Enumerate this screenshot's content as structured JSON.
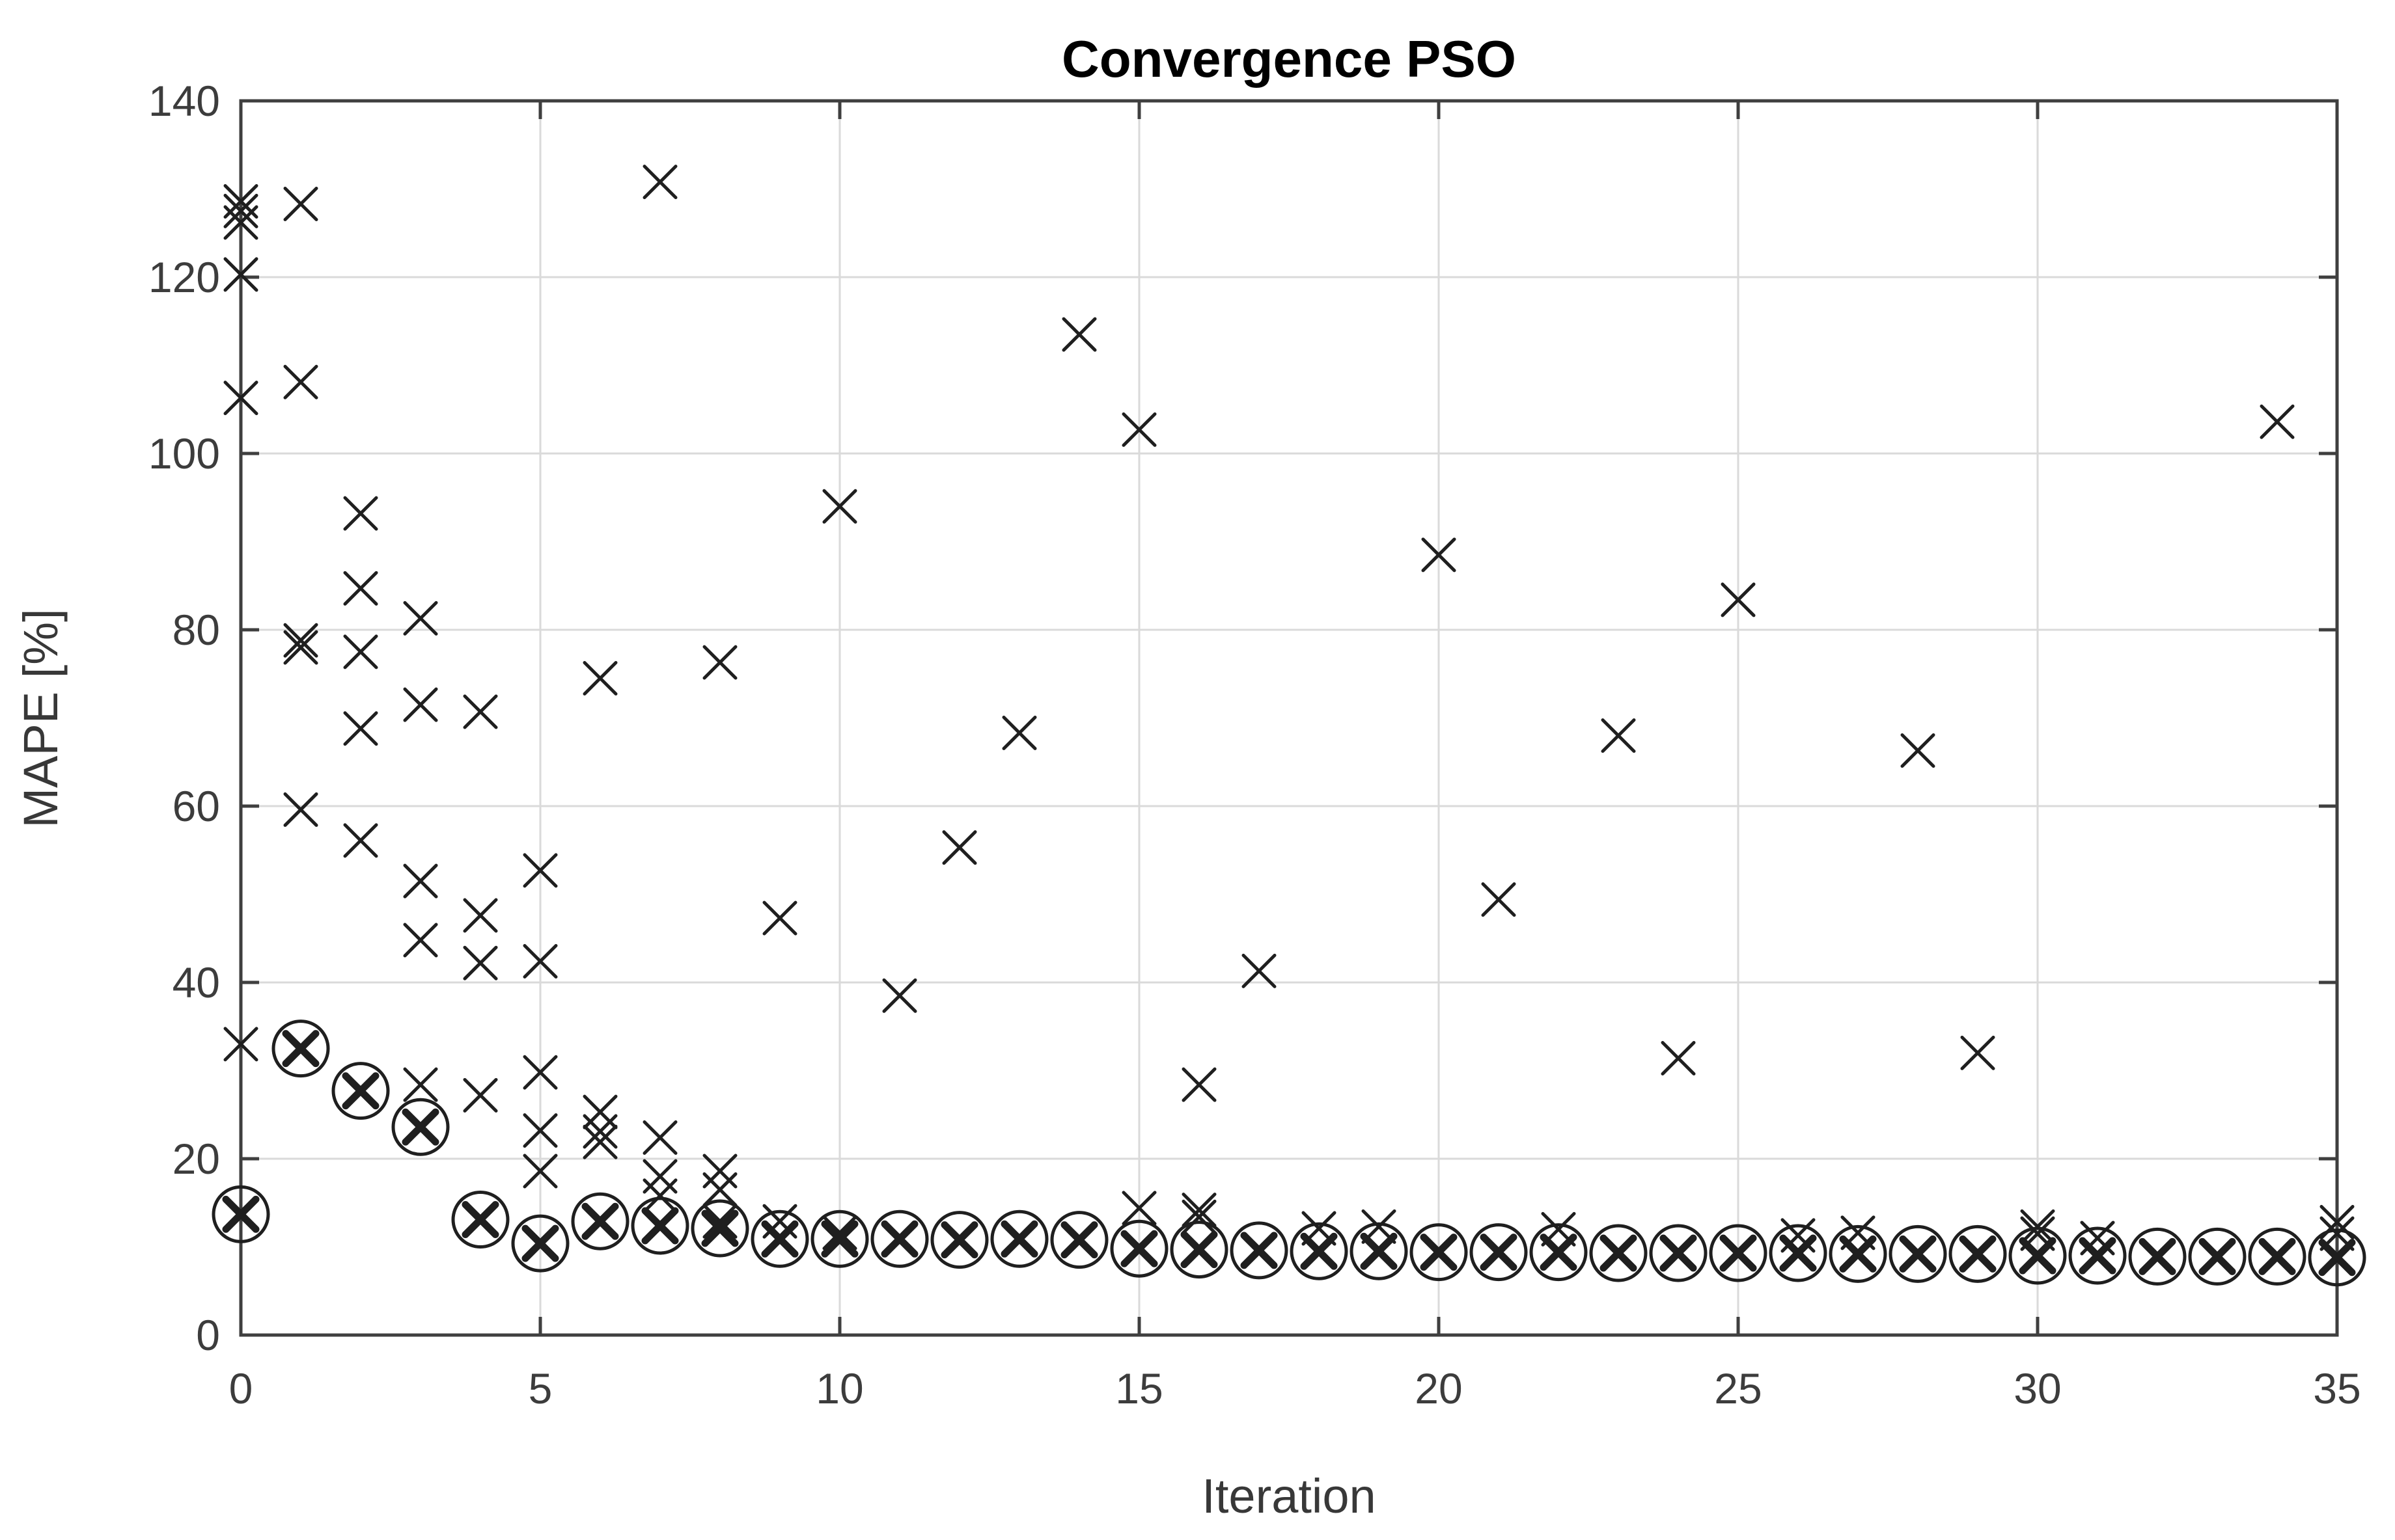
{
  "chart_data": {
    "type": "scatter",
    "title": "Convergence PSO",
    "xlabel": "Iteration",
    "ylabel": "MAPE [%]",
    "xlim": [
      0,
      35
    ],
    "ylim": [
      0,
      140
    ],
    "xticks": [
      0,
      5,
      10,
      15,
      20,
      25,
      30,
      35
    ],
    "yticks": [
      0,
      20,
      40,
      60,
      80,
      100,
      120,
      140
    ],
    "grid": true,
    "legend": "none",
    "series": [
      {
        "name": "particle-mape",
        "marker": "x",
        "points": [
          [
            0,
            128.6
          ],
          [
            0,
            127.5
          ],
          [
            0,
            126.2
          ],
          [
            0,
            120.3
          ],
          [
            0,
            106.3
          ],
          [
            0,
            33.0
          ],
          [
            1,
            128.3
          ],
          [
            1,
            108.1
          ],
          [
            1,
            78.8
          ],
          [
            1,
            78.0
          ],
          [
            1,
            59.6
          ],
          [
            2,
            93.2
          ],
          [
            2,
            84.7
          ],
          [
            2,
            77.5
          ],
          [
            2,
            68.8
          ],
          [
            2,
            56.1
          ],
          [
            3,
            81.3
          ],
          [
            3,
            71.5
          ],
          [
            3,
            51.5
          ],
          [
            3,
            44.8
          ],
          [
            3,
            28.4
          ],
          [
            4,
            70.7
          ],
          [
            4,
            47.6
          ],
          [
            4,
            42.2
          ],
          [
            4,
            27.2
          ],
          [
            5,
            52.7
          ],
          [
            5,
            42.4
          ],
          [
            5,
            29.8
          ],
          [
            5,
            23.2
          ],
          [
            5,
            18.6
          ],
          [
            6,
            74.5
          ],
          [
            6,
            25.3
          ],
          [
            6,
            23.1
          ],
          [
            6,
            21.9
          ],
          [
            7,
            130.8
          ],
          [
            7,
            22.4
          ],
          [
            7,
            18.0
          ],
          [
            7,
            15.8
          ],
          [
            8,
            76.3
          ],
          [
            8,
            18.6
          ],
          [
            8,
            16.5
          ],
          [
            8,
            12.9
          ],
          [
            9,
            47.3
          ],
          [
            9,
            12.9
          ],
          [
            10,
            94.0
          ],
          [
            10,
            11.6
          ],
          [
            11,
            38.5
          ],
          [
            12,
            55.3
          ],
          [
            13,
            68.3
          ],
          [
            14,
            113.5
          ],
          [
            15,
            102.7
          ],
          [
            15,
            14.4
          ],
          [
            16,
            28.4
          ],
          [
            16,
            14.2
          ],
          [
            16,
            13.4
          ],
          [
            17,
            41.3
          ],
          [
            18,
            12.1
          ],
          [
            19,
            12.3
          ],
          [
            20,
            88.5
          ],
          [
            21,
            49.4
          ],
          [
            22,
            12.0
          ],
          [
            23,
            68.0
          ],
          [
            24,
            31.4
          ],
          [
            25,
            83.4
          ],
          [
            26,
            11.3
          ],
          [
            27,
            11.6
          ],
          [
            28,
            66.3
          ],
          [
            29,
            32.0
          ],
          [
            30,
            12.3
          ],
          [
            30,
            11.5
          ],
          [
            31,
            11.0
          ],
          [
            34,
            103.6
          ],
          [
            35,
            12.8
          ],
          [
            35,
            11.5
          ]
        ]
      },
      {
        "name": "iteration-best-mape",
        "marker": "circled-x",
        "points": [
          [
            0,
            13.7
          ],
          [
            1,
            32.5
          ],
          [
            2,
            27.7
          ],
          [
            3,
            23.6
          ],
          [
            4,
            13.1
          ],
          [
            5,
            10.4
          ],
          [
            6,
            12.9
          ],
          [
            7,
            12.4
          ],
          [
            8,
            12.1
          ],
          [
            9,
            10.9
          ],
          [
            10,
            10.9
          ],
          [
            11,
            10.9
          ],
          [
            12,
            10.8
          ],
          [
            13,
            10.9
          ],
          [
            14,
            10.8
          ],
          [
            15,
            9.8
          ],
          [
            16,
            9.7
          ],
          [
            17,
            9.6
          ],
          [
            18,
            9.5
          ],
          [
            19,
            9.5
          ],
          [
            20,
            9.4
          ],
          [
            21,
            9.4
          ],
          [
            22,
            9.4
          ],
          [
            23,
            9.3
          ],
          [
            24,
            9.3
          ],
          [
            25,
            9.3
          ],
          [
            26,
            9.3
          ],
          [
            27,
            9.2
          ],
          [
            28,
            9.2
          ],
          [
            29,
            9.2
          ],
          [
            30,
            9.0
          ],
          [
            31,
            9.0
          ],
          [
            32,
            8.9
          ],
          [
            33,
            8.9
          ],
          [
            34,
            8.9
          ],
          [
            35,
            8.8
          ]
        ]
      }
    ],
    "colors": {
      "marker": "#1f1f1f",
      "grid": "#dadada",
      "axis": "#3f3f3f",
      "tick_text": "#3c3c3c",
      "title_text": "#000000",
      "background": "#ffffff"
    }
  }
}
